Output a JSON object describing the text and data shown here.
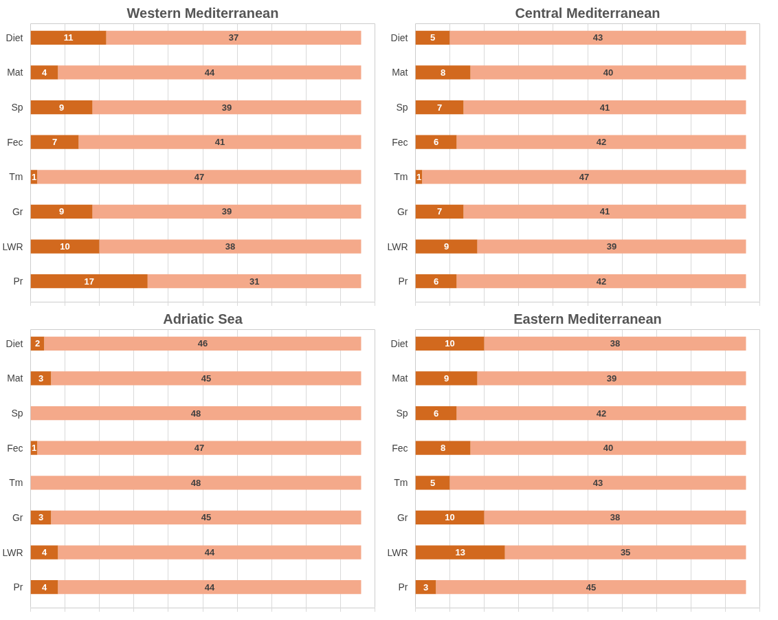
{
  "chart_data": [
    {
      "type": "bar",
      "orientation": "horizontal",
      "stacked": true,
      "title": "Western Mediterranean",
      "categories": [
        "Diet",
        "Mat",
        "Sp",
        "Fec",
        "Tm",
        "Gr",
        "LWR",
        "Pr"
      ],
      "xlim": [
        0,
        50
      ],
      "xticks": [
        {
          "value": 0,
          "label": null
        },
        {
          "value": 5,
          "label": null
        },
        {
          "value": 10,
          "label": null
        },
        {
          "value": 15,
          "label": null
        },
        {
          "value": 20,
          "label": null
        },
        {
          "value": 25,
          "label": null
        },
        {
          "value": 30,
          "label": null
        },
        {
          "value": 35,
          "label": null
        },
        {
          "value": 40,
          "label": null
        },
        {
          "value": 45,
          "label": null
        },
        {
          "value": 50,
          "label": null
        }
      ],
      "tick_labels": "y",
      "grid": "x",
      "data_labels": true,
      "series": [
        {
          "color": "#d2691e",
          "values": [
            11,
            4,
            9,
            7,
            1,
            9,
            10,
            17
          ]
        },
        {
          "color": "#f4a98a",
          "values": [
            37,
            44,
            39,
            41,
            47,
            39,
            38,
            31
          ]
        }
      ]
    },
    {
      "type": "bar",
      "orientation": "horizontal",
      "stacked": true,
      "title": "Central Mediterranean",
      "categories": [
        "Diet",
        "Mat",
        "Sp",
        "Fec",
        "Tm",
        "Gr",
        "LWR",
        "Pr"
      ],
      "xlim": [
        0,
        50
      ],
      "xticks": [
        {
          "value": 0,
          "label": null
        },
        {
          "value": 5,
          "label": null
        },
        {
          "value": 10,
          "label": null
        },
        {
          "value": 15,
          "label": null
        },
        {
          "value": 20,
          "label": null
        },
        {
          "value": 25,
          "label": null
        },
        {
          "value": 30,
          "label": null
        },
        {
          "value": 35,
          "label": null
        },
        {
          "value": 40,
          "label": null
        },
        {
          "value": 45,
          "label": null
        },
        {
          "value": 50,
          "label": null
        }
      ],
      "tick_labels": "y",
      "grid": "x",
      "data_labels": true,
      "series": [
        {
          "color": "#d2691e",
          "values": [
            5,
            8,
            7,
            6,
            1,
            7,
            9,
            6
          ]
        },
        {
          "color": "#f4a98a",
          "values": [
            43,
            40,
            41,
            42,
            47,
            41,
            39,
            42
          ]
        }
      ]
    },
    {
      "type": "bar",
      "orientation": "horizontal",
      "stacked": true,
      "title": "Adriatic Sea",
      "categories": [
        "Diet",
        "Mat",
        "Sp",
        "Fec",
        "Tm",
        "Gr",
        "LWR",
        "Pr"
      ],
      "xlim": [
        0,
        50
      ],
      "xticks": [
        {
          "value": 0,
          "label": null
        },
        {
          "value": 5,
          "label": null
        },
        {
          "value": 10,
          "label": null
        },
        {
          "value": 15,
          "label": null
        },
        {
          "value": 20,
          "label": null
        },
        {
          "value": 25,
          "label": null
        },
        {
          "value": 30,
          "label": null
        },
        {
          "value": 35,
          "label": null
        },
        {
          "value": 40,
          "label": null
        },
        {
          "value": 45,
          "label": null
        },
        {
          "value": 50,
          "label": null
        }
      ],
      "tick_labels": "y",
      "grid": "x",
      "series": [
        {
          "color": "#d2691e",
          "values": [
            2,
            3,
            0,
            1,
            0,
            3,
            4,
            4
          ],
          "value_labels": [
            "2",
            "3",
            null,
            "1",
            null,
            "3",
            "4",
            "4"
          ]
        },
        {
          "color": "#f4a98a",
          "values": [
            46,
            45,
            48,
            47,
            48,
            45,
            44,
            44
          ],
          "value_labels": [
            "46",
            "45",
            "48",
            "47",
            "48",
            "45",
            "44",
            "44"
          ]
        }
      ]
    },
    {
      "type": "bar",
      "orientation": "horizontal",
      "stacked": true,
      "title": "Eastern Mediterranean",
      "categories": [
        "Diet",
        "Mat",
        "Sp",
        "Fec",
        "Tm",
        "Gr",
        "LWR",
        "Pr"
      ],
      "xlim": [
        0,
        50
      ],
      "xticks": [
        {
          "value": 0,
          "label": null
        },
        {
          "value": 5,
          "label": null
        },
        {
          "value": 10,
          "label": null
        },
        {
          "value": 15,
          "label": null
        },
        {
          "value": 20,
          "label": null
        },
        {
          "value": 25,
          "label": null
        },
        {
          "value": 30,
          "label": null
        },
        {
          "value": 35,
          "label": null
        },
        {
          "value": 40,
          "label": null
        },
        {
          "value": 45,
          "label": null
        },
        {
          "value": 50,
          "label": null
        }
      ],
      "tick_labels": "y",
      "grid": "x",
      "data_labels": true,
      "series": [
        {
          "color": "#d2691e",
          "values": [
            10,
            9,
            6,
            8,
            5,
            10,
            13,
            3
          ]
        },
        {
          "color": "#f4a98a",
          "values": [
            38,
            39,
            42,
            40,
            43,
            38,
            35,
            45
          ]
        }
      ]
    }
  ]
}
